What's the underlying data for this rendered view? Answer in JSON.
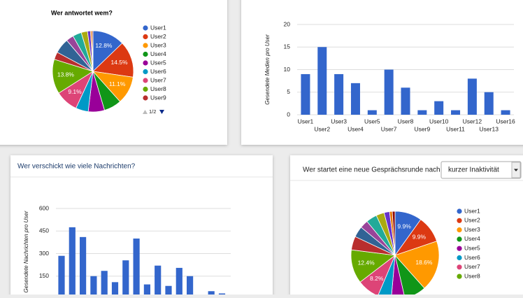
{
  "chart_data": [
    {
      "type": "pie",
      "title": "Wer antwortet wem?",
      "categories": [
        "User1",
        "User2",
        "User3",
        "User4",
        "User5",
        "User6",
        "User7",
        "User8",
        "User9",
        null,
        null,
        null,
        null,
        null,
        null,
        null
      ],
      "values": [
        12.8,
        14.5,
        11.1,
        7,
        6.5,
        5,
        9.1,
        13.8,
        3,
        6,
        3,
        3.5,
        2.5,
        1.2,
        0.6,
        0.4
      ],
      "value_labels": [
        "12.8%",
        "14.5%",
        "11.1%",
        null,
        null,
        null,
        "9.1%",
        "13.8%",
        null,
        null,
        null,
        null,
        null,
        null,
        null,
        null
      ],
      "colors": [
        "#3366cc",
        "#dc3912",
        "#ff9900",
        "#109618",
        "#990099",
        "#0099c6",
        "#dd4477",
        "#66aa00",
        "#b82e2e",
        "#316395",
        "#994499",
        "#22aa99",
        "#aaaa11",
        "#6633cc",
        "#e67300",
        "#8b0707"
      ],
      "legend_page": "1/2"
    },
    {
      "type": "bar",
      "ylabel": "Gesendete Medien pro User",
      "categories": [
        "User1",
        "User2",
        "User3",
        "User4",
        "User5",
        "User7",
        "User8",
        "User9",
        "User10",
        "User11",
        "User12",
        "User13",
        "User16"
      ],
      "values": [
        9,
        15,
        9,
        7,
        1,
        10,
        6,
        1,
        3,
        1,
        8,
        5,
        1
      ],
      "color": "#3366cc",
      "ylim": [
        0,
        20
      ],
      "yticks": [
        0,
        5,
        10,
        15,
        20
      ],
      "grid": true
    },
    {
      "type": "bar",
      "title": "Wer verschickt wie viele Nachrichten?",
      "ylabel": "Gesendete Nachrichten pro User",
      "categories": [
        null,
        null,
        null,
        null,
        null,
        null,
        null,
        null,
        null,
        null,
        null,
        null,
        null,
        null,
        null,
        null
      ],
      "values": [
        285,
        475,
        410,
        150,
        185,
        110,
        255,
        400,
        95,
        220,
        85,
        205,
        150,
        0,
        50,
        35
      ],
      "color": "#3366cc",
      "ylim": [
        0,
        600
      ],
      "yticks": [
        150,
        300,
        450,
        600
      ],
      "grid": true
    },
    {
      "type": "pie",
      "title": "Wer startet eine neue Gesprächsrunde nach",
      "dropdown": "kurzer Inaktivität",
      "categories": [
        "User1",
        "User2",
        "User3",
        "User4",
        "User5",
        "User6",
        "User7",
        "User8",
        null,
        null,
        null,
        null,
        null,
        null,
        null,
        null
      ],
      "values": [
        9.9,
        9.9,
        18.6,
        8,
        5,
        5,
        8.2,
        12.4,
        5,
        4,
        3,
        4,
        3,
        2,
        1,
        1
      ],
      "value_labels": [
        "9.9%",
        "9.9%",
        "18.6%",
        null,
        null,
        null,
        "8.2%",
        "12.4%",
        null,
        null,
        null,
        null,
        null,
        null,
        null,
        null
      ],
      "colors": [
        "#3366cc",
        "#dc3912",
        "#ff9900",
        "#109618",
        "#990099",
        "#0099c6",
        "#dd4477",
        "#66aa00",
        "#b82e2e",
        "#316395",
        "#994499",
        "#22aa99",
        "#aaaa11",
        "#6633cc",
        "#e67300",
        "#8b0707"
      ]
    }
  ]
}
